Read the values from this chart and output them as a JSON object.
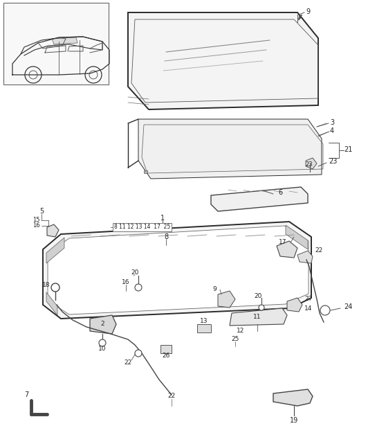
{
  "bg_color": "#ffffff",
  "line_color": "#2a2a2a",
  "fig_width": 5.45,
  "fig_height": 6.28,
  "dpi": 100,
  "gray_fill": "#e8e8e8",
  "dark_strip": "#b0b0b0"
}
